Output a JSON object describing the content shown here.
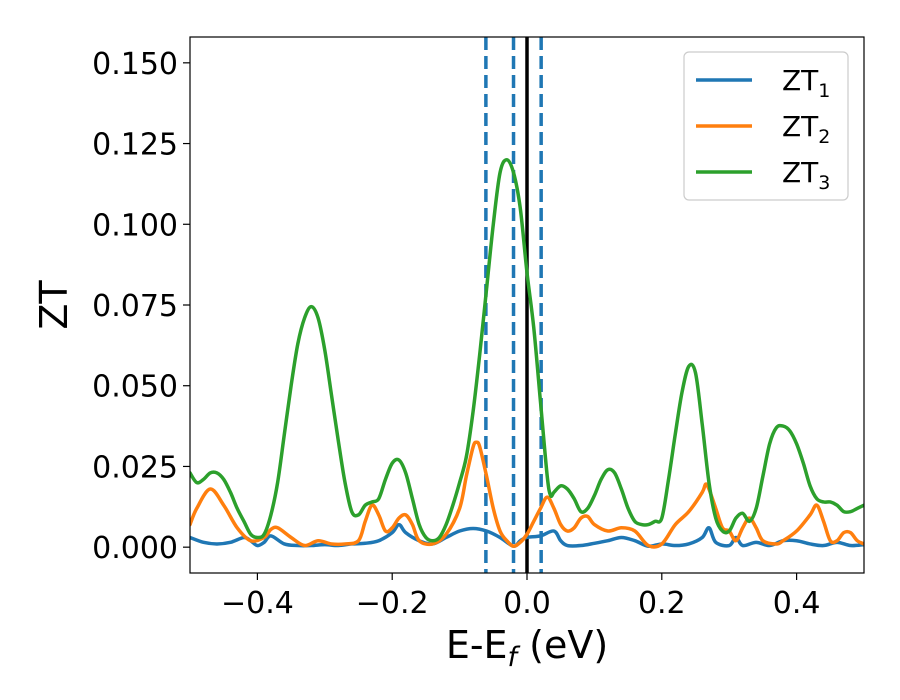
{
  "chart_data": {
    "type": "line",
    "xlabel": "E-E",
    "xlabel_sub": "f",
    "xlabel_unit": " (eV)",
    "ylabel": "ZT",
    "xlim": [
      -0.5,
      0.5
    ],
    "ylim": [
      -0.008,
      0.158
    ],
    "grid": false,
    "legend_position": "top-right",
    "x_ticks": [
      {
        "value": -0.4,
        "label": "−0.4"
      },
      {
        "value": -0.2,
        "label": "−0.2"
      },
      {
        "value": 0.0,
        "label": "0.0"
      },
      {
        "value": 0.2,
        "label": "0.2"
      },
      {
        "value": 0.4,
        "label": "0.4"
      }
    ],
    "y_ticks": [
      {
        "value": 0.0,
        "label": "0.000"
      },
      {
        "value": 0.025,
        "label": "0.025"
      },
      {
        "value": 0.05,
        "label": "0.050"
      },
      {
        "value": 0.075,
        "label": "0.075"
      },
      {
        "value": 0.1,
        "label": "0.100"
      },
      {
        "value": 0.125,
        "label": "0.125"
      },
      {
        "value": 0.15,
        "label": "0.150"
      }
    ],
    "vlines": [
      {
        "x": -0.061,
        "style": "dashed",
        "color": "#1f77b4"
      },
      {
        "x": -0.02,
        "style": "dashed",
        "color": "#1f77b4"
      },
      {
        "x": 0.021,
        "style": "dashed",
        "color": "#1f77b4"
      },
      {
        "x": 0.0,
        "style": "solid",
        "color": "#000000"
      }
    ],
    "series": [
      {
        "name": "ZT",
        "name_sub": "1",
        "color": "#1f77b4",
        "points": [
          [
            -0.5,
            0.003
          ],
          [
            -0.48,
            0.0015
          ],
          [
            -0.46,
            0.001
          ],
          [
            -0.44,
            0.0015
          ],
          [
            -0.42,
            0.003
          ],
          [
            -0.41,
            0.002
          ],
          [
            -0.4,
            0.0005
          ],
          [
            -0.39,
            0.0015
          ],
          [
            -0.38,
            0.0035
          ],
          [
            -0.36,
            0.001
          ],
          [
            -0.34,
            0.0005
          ],
          [
            -0.32,
            0.0005
          ],
          [
            -0.3,
            0.0008
          ],
          [
            -0.28,
            0.0005
          ],
          [
            -0.26,
            0.001
          ],
          [
            -0.24,
            0.0012
          ],
          [
            -0.22,
            0.002
          ],
          [
            -0.2,
            0.0045
          ],
          [
            -0.19,
            0.007
          ],
          [
            -0.18,
            0.0045
          ],
          [
            -0.16,
            0.002
          ],
          [
            -0.14,
            0.001
          ],
          [
            -0.12,
            0.003
          ],
          [
            -0.1,
            0.005
          ],
          [
            -0.08,
            0.0058
          ],
          [
            -0.06,
            0.005
          ],
          [
            -0.04,
            0.003
          ],
          [
            -0.02,
            0.0003
          ],
          [
            -0.01,
            0.002
          ],
          [
            0.0,
            0.003
          ],
          [
            0.02,
            0.0035
          ],
          [
            0.04,
            0.005
          ],
          [
            0.05,
            0.002
          ],
          [
            0.06,
            0.0005
          ],
          [
            0.08,
            0.0005
          ],
          [
            0.1,
            0.0012
          ],
          [
            0.12,
            0.002
          ],
          [
            0.14,
            0.003
          ],
          [
            0.16,
            0.002
          ],
          [
            0.18,
            0.0003
          ],
          [
            0.2,
            0.001
          ],
          [
            0.22,
            0.0005
          ],
          [
            0.24,
            0.001
          ],
          [
            0.26,
            0.003
          ],
          [
            0.27,
            0.006
          ],
          [
            0.28,
            0.0015
          ],
          [
            0.3,
            0.0005
          ],
          [
            0.31,
            0.003
          ],
          [
            0.32,
            0.0005
          ],
          [
            0.34,
            0.0015
          ],
          [
            0.36,
            0.0005
          ],
          [
            0.38,
            0.002
          ],
          [
            0.4,
            0.002
          ],
          [
            0.42,
            0.001
          ],
          [
            0.44,
            0.0005
          ],
          [
            0.46,
            0.0015
          ],
          [
            0.48,
            0.0005
          ],
          [
            0.5,
            0.0008
          ]
        ]
      },
      {
        "name": "ZT",
        "name_sub": "2",
        "color": "#ff7f0e",
        "points": [
          [
            -0.5,
            0.007
          ],
          [
            -0.49,
            0.012
          ],
          [
            -0.47,
            0.018
          ],
          [
            -0.45,
            0.013
          ],
          [
            -0.43,
            0.006
          ],
          [
            -0.41,
            0.002
          ],
          [
            -0.39,
            0.003
          ],
          [
            -0.38,
            0.0055
          ],
          [
            -0.37,
            0.006
          ],
          [
            -0.35,
            0.003
          ],
          [
            -0.33,
            0.0005
          ],
          [
            -0.31,
            0.002
          ],
          [
            -0.29,
            0.001
          ],
          [
            -0.27,
            0.001
          ],
          [
            -0.25,
            0.002
          ],
          [
            -0.24,
            0.008
          ],
          [
            -0.23,
            0.013
          ],
          [
            -0.22,
            0.01
          ],
          [
            -0.21,
            0.005
          ],
          [
            -0.2,
            0.006
          ],
          [
            -0.19,
            0.009
          ],
          [
            -0.18,
            0.01
          ],
          [
            -0.17,
            0.007
          ],
          [
            -0.16,
            0.002
          ],
          [
            -0.14,
            0.001
          ],
          [
            -0.12,
            0.004
          ],
          [
            -0.1,
            0.012
          ],
          [
            -0.09,
            0.022
          ],
          [
            -0.08,
            0.031
          ],
          [
            -0.075,
            0.0325
          ],
          [
            -0.07,
            0.031
          ],
          [
            -0.06,
            0.022
          ],
          [
            -0.05,
            0.012
          ],
          [
            -0.04,
            0.005
          ],
          [
            -0.03,
            0.002
          ],
          [
            -0.02,
            0.0003
          ],
          [
            -0.01,
            0.0015
          ],
          [
            0.0,
            0.004
          ],
          [
            0.01,
            0.008
          ],
          [
            0.02,
            0.012
          ],
          [
            0.03,
            0.0155
          ],
          [
            0.04,
            0.012
          ],
          [
            0.05,
            0.007
          ],
          [
            0.06,
            0.005
          ],
          [
            0.07,
            0.006
          ],
          [
            0.08,
            0.009
          ],
          [
            0.09,
            0.0095
          ],
          [
            0.1,
            0.007
          ],
          [
            0.12,
            0.005
          ],
          [
            0.14,
            0.006
          ],
          [
            0.16,
            0.005
          ],
          [
            0.18,
            0.0005
          ],
          [
            0.2,
            0.001
          ],
          [
            0.22,
            0.007
          ],
          [
            0.24,
            0.011
          ],
          [
            0.26,
            0.017
          ],
          [
            0.265,
            0.0195
          ],
          [
            0.27,
            0.018
          ],
          [
            0.28,
            0.012
          ],
          [
            0.29,
            0.006
          ],
          [
            0.3,
            0.005
          ],
          [
            0.31,
            0.002
          ],
          [
            0.32,
            0.006
          ],
          [
            0.33,
            0.009
          ],
          [
            0.34,
            0.006
          ],
          [
            0.35,
            0.002
          ],
          [
            0.37,
            0.001
          ],
          [
            0.38,
            0.002
          ],
          [
            0.4,
            0.005
          ],
          [
            0.42,
            0.01
          ],
          [
            0.43,
            0.013
          ],
          [
            0.44,
            0.008
          ],
          [
            0.45,
            0.002
          ],
          [
            0.46,
            0.002
          ],
          [
            0.47,
            0.0045
          ],
          [
            0.48,
            0.0045
          ],
          [
            0.49,
            0.002
          ],
          [
            0.5,
            0.001
          ]
        ]
      },
      {
        "name": "ZT",
        "name_sub": "3",
        "color": "#2ca02c",
        "points": [
          [
            -0.5,
            0.023
          ],
          [
            -0.49,
            0.02
          ],
          [
            -0.48,
            0.021
          ],
          [
            -0.47,
            0.023
          ],
          [
            -0.46,
            0.023
          ],
          [
            -0.45,
            0.021
          ],
          [
            -0.44,
            0.017
          ],
          [
            -0.43,
            0.012
          ],
          [
            -0.42,
            0.008
          ],
          [
            -0.41,
            0.004
          ],
          [
            -0.4,
            0.003
          ],
          [
            -0.39,
            0.004
          ],
          [
            -0.38,
            0.01
          ],
          [
            -0.37,
            0.02
          ],
          [
            -0.36,
            0.035
          ],
          [
            -0.35,
            0.05
          ],
          [
            -0.34,
            0.063
          ],
          [
            -0.33,
            0.071
          ],
          [
            -0.32,
            0.0745
          ],
          [
            -0.31,
            0.071
          ],
          [
            -0.3,
            0.061
          ],
          [
            -0.29,
            0.047
          ],
          [
            -0.28,
            0.033
          ],
          [
            -0.27,
            0.02
          ],
          [
            -0.26,
            0.011
          ],
          [
            -0.25,
            0.01
          ],
          [
            -0.24,
            0.013
          ],
          [
            -0.23,
            0.014
          ],
          [
            -0.22,
            0.015
          ],
          [
            -0.21,
            0.021
          ],
          [
            -0.2,
            0.026
          ],
          [
            -0.19,
            0.027
          ],
          [
            -0.18,
            0.023
          ],
          [
            -0.17,
            0.015
          ],
          [
            -0.16,
            0.007
          ],
          [
            -0.15,
            0.003
          ],
          [
            -0.14,
            0.002
          ],
          [
            -0.13,
            0.003
          ],
          [
            -0.12,
            0.007
          ],
          [
            -0.11,
            0.013
          ],
          [
            -0.1,
            0.02
          ],
          [
            -0.09,
            0.028
          ],
          [
            -0.08,
            0.042
          ],
          [
            -0.07,
            0.06
          ],
          [
            -0.06,
            0.08
          ],
          [
            -0.05,
            0.1
          ],
          [
            -0.04,
            0.116
          ],
          [
            -0.03,
            0.12
          ],
          [
            -0.02,
            0.116
          ],
          [
            -0.01,
            0.105
          ],
          [
            0.0,
            0.085
          ],
          [
            0.01,
            0.068
          ],
          [
            0.02,
            0.045
          ],
          [
            0.03,
            0.022
          ],
          [
            0.035,
            0.016
          ],
          [
            0.04,
            0.017
          ],
          [
            0.05,
            0.019
          ],
          [
            0.06,
            0.018
          ],
          [
            0.07,
            0.015
          ],
          [
            0.08,
            0.011
          ],
          [
            0.09,
            0.012
          ],
          [
            0.1,
            0.016
          ],
          [
            0.11,
            0.021
          ],
          [
            0.12,
            0.024
          ],
          [
            0.13,
            0.023
          ],
          [
            0.14,
            0.018
          ],
          [
            0.15,
            0.012
          ],
          [
            0.16,
            0.008
          ],
          [
            0.17,
            0.007
          ],
          [
            0.18,
            0.007
          ],
          [
            0.19,
            0.008
          ],
          [
            0.2,
            0.009
          ],
          [
            0.21,
            0.021
          ],
          [
            0.22,
            0.035
          ],
          [
            0.23,
            0.048
          ],
          [
            0.24,
            0.056
          ],
          [
            0.25,
            0.054
          ],
          [
            0.26,
            0.038
          ],
          [
            0.27,
            0.02
          ],
          [
            0.28,
            0.009
          ],
          [
            0.29,
            0.005
          ],
          [
            0.3,
            0.005
          ],
          [
            0.31,
            0.009
          ],
          [
            0.32,
            0.0105
          ],
          [
            0.33,
            0.008
          ],
          [
            0.34,
            0.012
          ],
          [
            0.35,
            0.022
          ],
          [
            0.36,
            0.032
          ],
          [
            0.37,
            0.037
          ],
          [
            0.38,
            0.0375
          ],
          [
            0.39,
            0.036
          ],
          [
            0.4,
            0.032
          ],
          [
            0.41,
            0.026
          ],
          [
            0.42,
            0.019
          ],
          [
            0.43,
            0.015
          ],
          [
            0.44,
            0.014
          ],
          [
            0.45,
            0.014
          ],
          [
            0.46,
            0.013
          ],
          [
            0.47,
            0.011
          ],
          [
            0.48,
            0.011
          ],
          [
            0.49,
            0.012
          ],
          [
            0.5,
            0.013
          ]
        ]
      }
    ]
  }
}
